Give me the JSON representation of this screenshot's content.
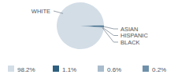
{
  "chart_data": {
    "type": "pie",
    "categories": [
      "WHITE",
      "ASIAN",
      "HISPANIC",
      "BLACK"
    ],
    "values": [
      98.2,
      1.1,
      0.6,
      0.2
    ],
    "value_labels": [
      "98.2%",
      "1.1%",
      "0.6%",
      "0.2%"
    ],
    "colors": [
      "#d3dde6",
      "#2f5f80",
      "#a9bccd",
      "#6f90aa"
    ],
    "legend": "bottom"
  }
}
